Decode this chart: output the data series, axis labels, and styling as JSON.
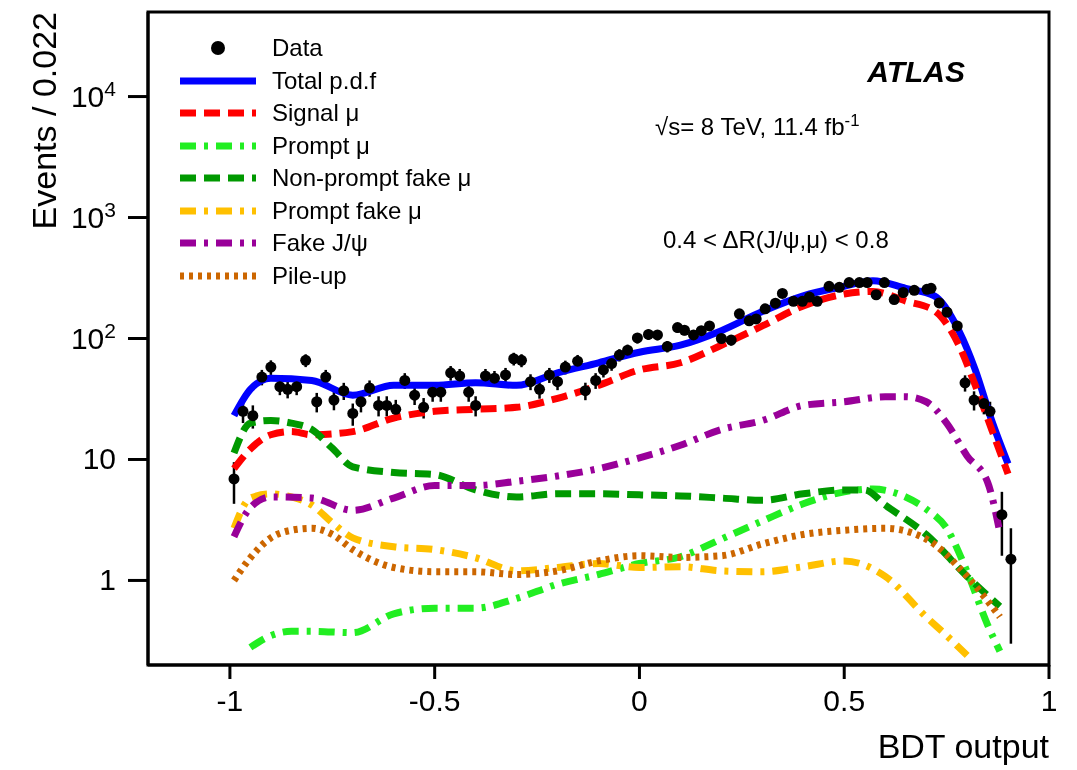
{
  "chart_data": {
    "type": "line",
    "xlabel": "BDT output",
    "ylabel": "Events / 0.022",
    "log": "y",
    "grid": false,
    "legend": "top left",
    "xlim": [
      -1.2,
      1
    ],
    "xticks": [
      -1,
      -0.5,
      0,
      0.5,
      1
    ],
    "ylim": [
      0.2,
      50000
    ],
    "yticks": [
      1,
      10,
      {
        "value": 100,
        "label": "10$^{2}$"
      },
      {
        "value": 1000,
        "label": "10$^{3}$"
      },
      {
        "value": 10000,
        "label": "10$^{4}$"
      }
    ],
    "annotations": [
      "ATLAS",
      "√s= 8 TeV, 11.4 fb$^{-1}$",
      "0.4 < ΔR(J/ψ,μ) < 0.8"
    ],
    "series": [
      {
        "name": "Data",
        "type": "scatter",
        "marker": "circle",
        "color": "#000000",
        "x": [
          -0.99,
          -0.968,
          -0.944,
          -0.922,
          -0.9,
          -0.878,
          -0.859,
          -0.837,
          -0.815,
          -0.788,
          -0.766,
          -0.746,
          -0.722,
          -0.7,
          -0.68,
          -0.659,
          -0.637,
          -0.617,
          -0.595,
          -0.573,
          -0.549,
          -0.527,
          -0.505,
          -0.485,
          -0.461,
          -0.439,
          -0.417,
          -0.4,
          -0.376,
          -0.354,
          -0.327,
          -0.307,
          -0.288,
          -0.266,
          -0.244,
          -0.22,
          -0.2,
          -0.181,
          -0.151,
          -0.132,
          -0.107,
          -0.088,
          -0.068,
          -0.049,
          -0.029,
          -0.005,
          0.022,
          0.044,
          0.068,
          0.093,
          0.11,
          0.132,
          0.151,
          0.171,
          0.2,
          0.224,
          0.244,
          0.268,
          0.285,
          0.307,
          0.332,
          0.349,
          0.376,
          0.398,
          0.415,
          0.434,
          0.463,
          0.488,
          0.512,
          0.537,
          0.556,
          0.578,
          0.598,
          0.622,
          0.644,
          0.671,
          0.702,
          0.712,
          0.732,
          0.751,
          0.776,
          0.795,
          0.817,
          0.841,
          0.856,
          0.885,
          0.907
        ],
        "values": [
          6.9,
          25,
          23,
          48,
          58,
          40,
          38,
          40,
          66,
          30,
          48,
          31,
          37,
          24,
          30,
          39,
          28,
          28,
          26,
          45,
          34,
          27,
          36,
          36,
          52,
          49,
          36,
          28,
          49,
          47,
          50,
          68,
          66,
          44,
          38,
          50,
          44,
          58,
          65,
          37,
          45,
          55,
          62,
          73,
          80,
          101,
          108,
          107,
          86,
          123,
          117,
          107,
          116,
          127,
          100,
          97,
          160,
          140,
          145,
          176,
          196,
          236,
          203,
          203,
          220,
          203,
          270,
          265,
          290,
          290,
          290,
          230,
          290,
          210,
          240,
          250,
          255,
          260,
          197,
          165,
          127,
          43,
          31,
          29,
          25,
          3.5,
          1.5
        ],
        "errors": [
          2.6,
          5,
          5,
          7,
          8,
          6,
          6,
          6,
          8,
          5.5,
          7,
          5.5,
          6,
          5,
          5.5,
          6,
          5.3,
          5.3,
          5.1,
          6.7,
          5.8,
          5.2,
          6,
          6,
          7.2,
          7,
          6,
          5.3,
          7,
          6.9,
          7.1,
          8.2,
          8.1,
          6.6,
          6.2,
          7.1,
          6.6,
          7.6,
          8.1,
          6.1,
          6.7,
          7.4,
          7.9,
          8.5,
          8.9,
          10,
          10.4,
          10.3,
          9.3,
          11.1,
          10.8,
          10.3,
          10.8,
          11.3,
          10,
          9.8,
          12.6,
          11.8,
          12,
          13.3,
          14,
          15.4,
          14.2,
          14.2,
          14.8,
          14.2,
          16.4,
          16.3,
          17,
          17,
          17,
          15.2,
          17,
          14.5,
          15.5,
          15.8,
          16,
          16.1,
          14,
          12.8,
          11.3,
          6.6,
          5.6,
          5.4,
          5,
          1.9,
          1.2
        ]
      },
      {
        "name": "Total p.d.f",
        "color": "#0000ff",
        "line_style": "solid",
        "x": [
          -0.99,
          -0.95,
          -0.9,
          -0.8,
          -0.7,
          -0.6,
          -0.5,
          -0.4,
          -0.3,
          -0.2,
          -0.1,
          0,
          0.1,
          0.2,
          0.3,
          0.4,
          0.5,
          0.57,
          0.65,
          0.72,
          0.78,
          0.82,
          0.86,
          0.9
        ],
        "values": [
          23,
          38,
          47,
          45,
          34,
          41,
          41,
          43,
          41,
          52,
          63,
          77,
          88,
          116,
          167,
          225,
          270,
          300,
          260,
          225,
          116,
          55,
          21,
          9.2
        ]
      },
      {
        "name": "Signal μ",
        "color": "#ff0000",
        "line_style": "dashed",
        "x": [
          -0.99,
          -0.95,
          -0.9,
          -0.85,
          -0.8,
          -0.7,
          -0.6,
          -0.5,
          -0.4,
          -0.3,
          -0.2,
          -0.1,
          0,
          0.1,
          0.2,
          0.3,
          0.4,
          0.5,
          0.57,
          0.65,
          0.72,
          0.78,
          0.82,
          0.86,
          0.9
        ],
        "values": [
          8.4,
          12.2,
          16,
          17,
          16,
          17,
          22,
          25,
          26,
          27,
          32,
          41,
          55,
          63,
          88,
          127,
          186,
          233,
          245,
          204,
          170,
          88,
          41,
          17.7,
          7.6
        ]
      },
      {
        "name": "Prompt μ",
        "color": "#22ee22",
        "line_style": "dashdot",
        "x": [
          -0.95,
          -0.9,
          -0.85,
          -0.8,
          -0.7,
          -0.6,
          -0.5,
          -0.4,
          -0.3,
          -0.2,
          -0.1,
          0,
          0.1,
          0.2,
          0.3,
          0.4,
          0.5,
          0.57,
          0.65,
          0.7,
          0.75,
          0.8,
          0.85,
          0.88
        ],
        "values": [
          0.28,
          0.35,
          0.38,
          0.38,
          0.37,
          0.53,
          0.59,
          0.59,
          0.71,
          0.93,
          1.12,
          1.38,
          1.57,
          2.2,
          3.1,
          4.3,
          5.4,
          5.7,
          4.9,
          3.9,
          2.7,
          1.18,
          0.43,
          0.26
        ]
      },
      {
        "name": "Non-prompt fake μ",
        "color": "#009900",
        "line_style": "dashed",
        "x": [
          -0.99,
          -0.95,
          -0.9,
          -0.85,
          -0.8,
          -0.75,
          -0.7,
          -0.6,
          -0.5,
          -0.4,
          -0.3,
          -0.2,
          -0.1,
          0,
          0.1,
          0.2,
          0.3,
          0.4,
          0.5,
          0.55,
          0.6,
          0.7,
          0.8,
          0.88
        ],
        "values": [
          11.3,
          20,
          21,
          20,
          17.7,
          12.4,
          8.7,
          7.8,
          7.5,
          5.6,
          4.9,
          5.2,
          5.2,
          5.1,
          5,
          4.8,
          4.6,
          5.2,
          5.6,
          5.6,
          4.2,
          2.4,
          1.08,
          0.61
        ]
      },
      {
        "name": "Prompt fake μ",
        "color": "#ffc000",
        "line_style": "dashdot",
        "x": [
          -0.99,
          -0.95,
          -0.9,
          -0.85,
          -0.8,
          -0.75,
          -0.7,
          -0.6,
          -0.5,
          -0.4,
          -0.3,
          -0.2,
          -0.1,
          0,
          0.1,
          0.2,
          0.3,
          0.4,
          0.5,
          0.6,
          0.7,
          0.75,
          0.8
        ],
        "values": [
          2.7,
          4.8,
          5.2,
          4.9,
          4.2,
          3,
          2.25,
          1.9,
          1.8,
          1.54,
          1.2,
          1.28,
          1.38,
          1.28,
          1.3,
          1.2,
          1.18,
          1.3,
          1.45,
          1.08,
          0.5,
          0.35,
          0.24
        ]
      },
      {
        "name": "Fake J/ψ",
        "color": "#990099",
        "line_style": "dashdot",
        "x": [
          -0.99,
          -0.95,
          -0.9,
          -0.8,
          -0.7,
          -0.6,
          -0.5,
          -0.4,
          -0.3,
          -0.2,
          -0.1,
          0,
          0.1,
          0.2,
          0.3,
          0.4,
          0.5,
          0.6,
          0.65,
          0.7,
          0.75,
          0.8,
          0.85,
          0.88
        ],
        "values": [
          2.3,
          4,
          4.9,
          4.8,
          3.8,
          4.8,
          6.1,
          6.1,
          6.6,
          7.3,
          8.4,
          10.3,
          13.1,
          17.7,
          21,
          28,
          30,
          33,
          33,
          30,
          20,
          10.7,
          6.5,
          2.5
        ]
      },
      {
        "name": "Pile-up",
        "color": "#cc6600",
        "line_style": "dotted",
        "x": [
          -0.99,
          -0.95,
          -0.9,
          -0.85,
          -0.8,
          -0.75,
          -0.7,
          -0.6,
          -0.5,
          -0.4,
          -0.3,
          -0.2,
          -0.1,
          0,
          0.1,
          0.2,
          0.3,
          0.4,
          0.5,
          0.6,
          0.7,
          0.8,
          0.88
        ],
        "values": [
          1,
          1.54,
          2.25,
          2.6,
          2.7,
          2.4,
          1.8,
          1.28,
          1.18,
          1.18,
          1.12,
          1.2,
          1.45,
          1.6,
          1.55,
          1.6,
          2,
          2.4,
          2.6,
          2.7,
          2.2,
          1.08,
          0.5
        ]
      }
    ]
  }
}
